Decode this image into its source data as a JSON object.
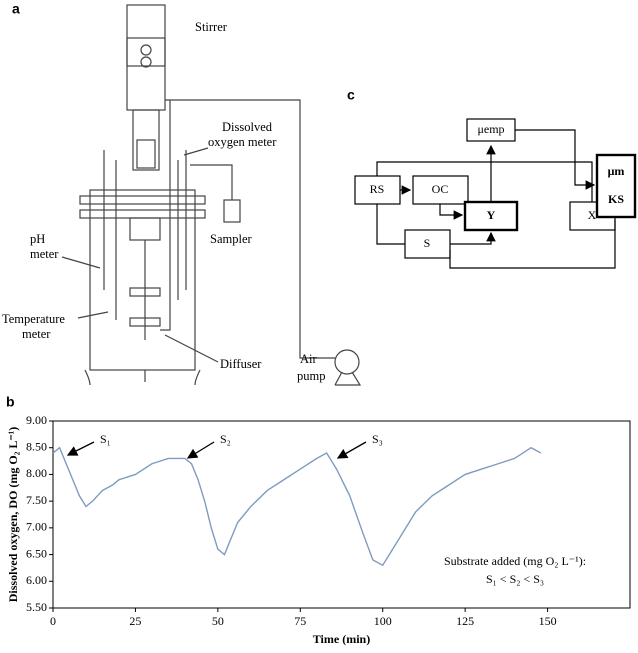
{
  "panels": {
    "a": "a",
    "b": "b",
    "c": "c"
  },
  "reactor_labels": {
    "stirrer": [
      "Stirrer"
    ],
    "do_meter": [
      "Dissolved",
      "oxygen meter"
    ],
    "sampler": [
      "Sampler"
    ],
    "ph": [
      "pH",
      "meter"
    ],
    "temperature": [
      "Temperature",
      "meter"
    ],
    "diffuser": [
      "Diffuser"
    ],
    "air_pump": [
      "Air",
      "pump"
    ]
  },
  "nodes": {
    "mu_emp": "μemp",
    "rs": "RS",
    "oc": "OC",
    "y": "Y",
    "x": "X",
    "s": "S",
    "mu_m": "μm",
    "ks": "KS"
  },
  "chart_data": {
    "type": "line",
    "ylabel": "Dissolved oxygen, DO (mg O₂ L⁻¹)",
    "xlabel": "Time (min)",
    "x": [
      0,
      2,
      4,
      6,
      8,
      10,
      12,
      15,
      18,
      20,
      25,
      30,
      35,
      40,
      42,
      44,
      46,
      48,
      50,
      52,
      54,
      56,
      60,
      65,
      70,
      75,
      80,
      83,
      86,
      90,
      94,
      97,
      100,
      103,
      106,
      110,
      115,
      120,
      125,
      130,
      135,
      140,
      145,
      148
    ],
    "values": [
      8.4,
      8.5,
      8.2,
      7.9,
      7.6,
      7.4,
      7.5,
      7.7,
      7.8,
      7.9,
      8.0,
      8.2,
      8.3,
      8.3,
      8.2,
      7.9,
      7.5,
      7.0,
      6.6,
      6.5,
      6.8,
      7.1,
      7.4,
      7.7,
      7.9,
      8.1,
      8.3,
      8.4,
      8.1,
      7.6,
      6.9,
      6.4,
      6.3,
      6.6,
      6.9,
      7.3,
      7.6,
      7.8,
      8.0,
      8.1,
      8.2,
      8.3,
      8.5,
      8.4
    ],
    "color": "#7f9bbf",
    "xlim": [
      0,
      175
    ],
    "xticks": [
      0,
      25,
      50,
      75,
      100,
      125,
      150
    ],
    "ylim": [
      5.5,
      9.0
    ],
    "yticks": [
      {
        "value": 5.5,
        "label": "5.50"
      },
      {
        "value": 6.0,
        "label": "6.00"
      },
      {
        "value": 6.5,
        "label": "6.50"
      },
      {
        "value": 7.0,
        "label": "7.00"
      },
      {
        "value": 7.5,
        "label": "7.50"
      },
      {
        "value": 8.0,
        "label": "8.00"
      },
      {
        "value": 8.5,
        "label": "8.50"
      },
      {
        "value": 9.0,
        "label": "9.00"
      }
    ],
    "annotations": [
      "S₁",
      "S₂",
      "S₃"
    ],
    "note": [
      "Substrate added (mg O₂ L⁻¹):",
      "S₁ < S₂ < S₃"
    ]
  }
}
